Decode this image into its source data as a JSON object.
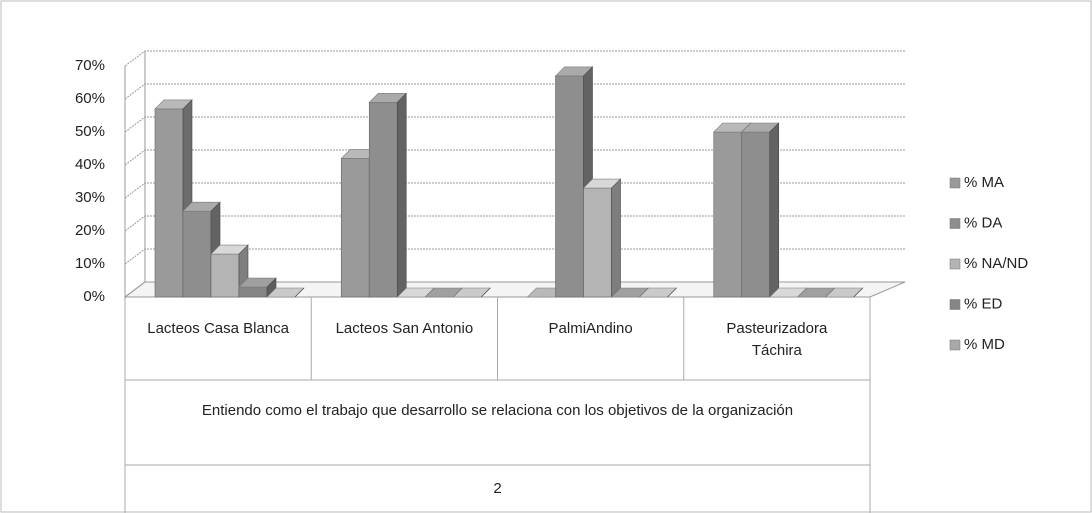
{
  "chart_data": {
    "type": "bar3d",
    "categories": [
      "Lacteos Casa Blanca",
      "Lacteos San Antonio",
      "PalmiAndino",
      "Pasteurizadora Táchira"
    ],
    "group_label": "Entiendo como el trabajo que desarrollo se relaciona con los objetivos de la organización",
    "group_number": "2",
    "series": [
      {
        "name": "% MA",
        "color": "#9a9a9a",
        "values": [
          57,
          42,
          0,
          50
        ]
      },
      {
        "name": "% DA",
        "color": "#8e8e8e",
        "values": [
          26,
          59,
          67,
          50
        ]
      },
      {
        "name": "% NA/ND",
        "color": "#b4b4b4",
        "values": [
          13,
          0,
          33,
          0
        ]
      },
      {
        "name": "% ED",
        "color": "#858585",
        "values": [
          3,
          0,
          0,
          0
        ]
      },
      {
        "name": "% MD",
        "color": "#a8a8a8",
        "values": [
          0,
          0,
          0,
          0
        ]
      }
    ],
    "ylim": [
      0,
      70
    ],
    "yticks": [
      {
        "value": 0,
        "label": "0%"
      },
      {
        "value": 10,
        "label": "10%"
      },
      {
        "value": 20,
        "label": "20%"
      },
      {
        "value": 30,
        "label": "30%"
      },
      {
        "value": 40,
        "label": "40%"
      },
      {
        "value": 50,
        "label": "50%"
      },
      {
        "value": 60,
        "label": "60%"
      },
      {
        "value": 70,
        "label": "70%"
      }
    ],
    "grid": true,
    "legend": "right"
  }
}
